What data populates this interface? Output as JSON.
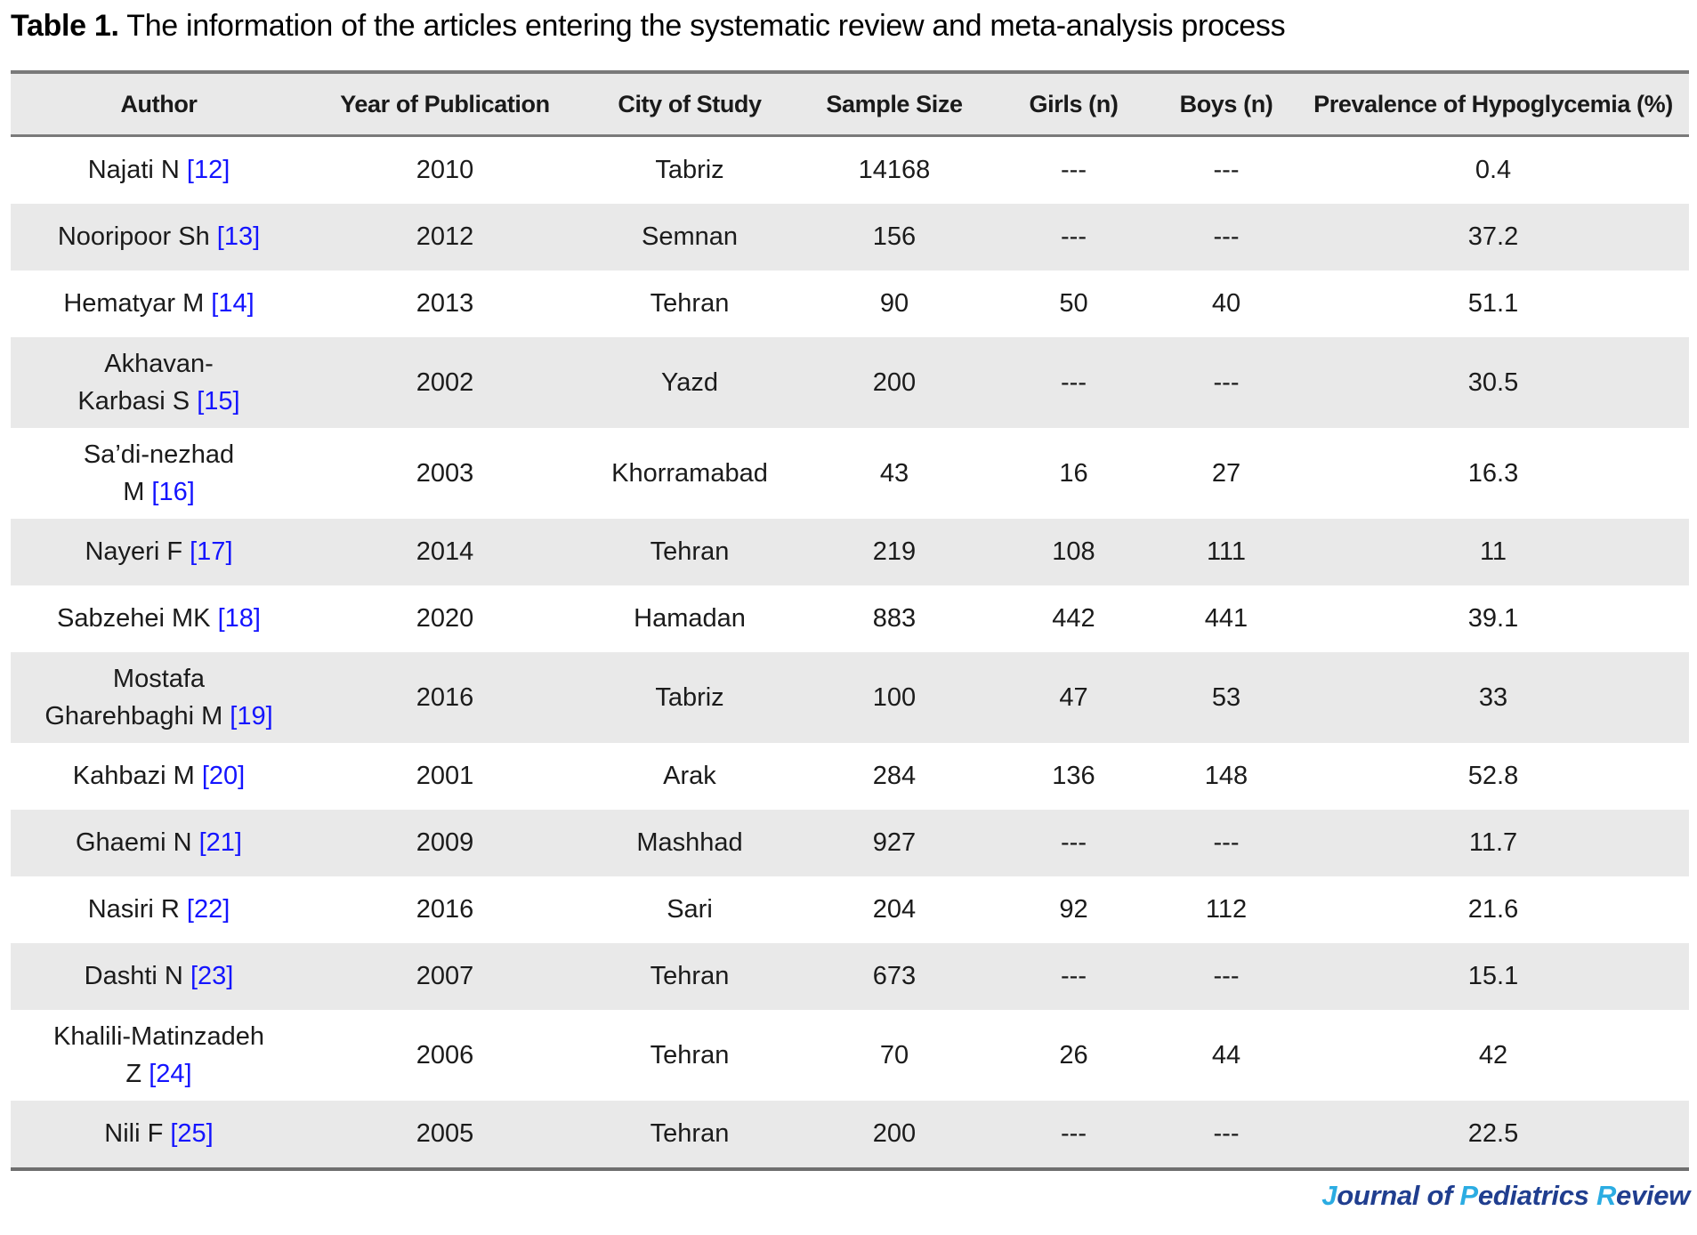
{
  "title": {
    "label": "Table 1.",
    "text": " The information of the articles entering the systematic review and meta-analysis process"
  },
  "table": {
    "columns": [
      "Author",
      "Year of Publication",
      "City of Study",
      "Sample Size",
      "Girls (n)",
      "Boys (n)",
      "Prevalence of Hypoglycemia (%)"
    ],
    "rows": [
      {
        "author_lines": [
          "Najati N"
        ],
        "ref": "[12]",
        "year": "2010",
        "city": "Tabriz",
        "sample_size": "14168",
        "girls": "---",
        "boys": "---",
        "prevalence": "0.4"
      },
      {
        "author_lines": [
          "Nooripoor Sh"
        ],
        "ref": "[13]",
        "year": "2012",
        "city": "Semnan",
        "sample_size": "156",
        "girls": "---",
        "boys": "---",
        "prevalence": "37.2"
      },
      {
        "author_lines": [
          "Hematyar M"
        ],
        "ref": "[14]",
        "year": "2013",
        "city": "Tehran",
        "sample_size": "90",
        "girls": "50",
        "boys": "40",
        "prevalence": "51.1"
      },
      {
        "author_lines": [
          "Akhavan-",
          "Karbasi S"
        ],
        "ref": "[15]",
        "year": "2002",
        "city": "Yazd",
        "sample_size": "200",
        "girls": "---",
        "boys": "---",
        "prevalence": "30.5"
      },
      {
        "author_lines": [
          "Sa’di-nezhad",
          "M"
        ],
        "ref": "[16]",
        "year": "2003",
        "city": "Khorramabad",
        "sample_size": "43",
        "girls": "16",
        "boys": "27",
        "prevalence": "16.3"
      },
      {
        "author_lines": [
          "Nayeri F"
        ],
        "ref": "[17]",
        "year": "2014",
        "city": "Tehran",
        "sample_size": "219",
        "girls": "108",
        "boys": "111",
        "prevalence": "11"
      },
      {
        "author_lines": [
          "Sabzehei MK"
        ],
        "ref": "[18]",
        "year": "2020",
        "city": "Hamadan",
        "sample_size": "883",
        "girls": "442",
        "boys": "441",
        "prevalence": "39.1"
      },
      {
        "author_lines": [
          "Mostafa",
          "Gharehbaghi M"
        ],
        "ref": "[19]",
        "year": "2016",
        "city": "Tabriz",
        "sample_size": "100",
        "girls": "47",
        "boys": "53",
        "prevalence": "33"
      },
      {
        "author_lines": [
          "Kahbazi M"
        ],
        "ref": "[20]",
        "year": "2001",
        "city": "Arak",
        "sample_size": "284",
        "girls": "136",
        "boys": "148",
        "prevalence": "52.8"
      },
      {
        "author_lines": [
          "Ghaemi N"
        ],
        "ref": "[21]",
        "year": "2009",
        "city": "Mashhad",
        "sample_size": "927",
        "girls": "---",
        "boys": "---",
        "prevalence": "11.7"
      },
      {
        "author_lines": [
          "Nasiri R"
        ],
        "ref": "[22]",
        "year": "2016",
        "city": "Sari",
        "sample_size": "204",
        "girls": "92",
        "boys": "112",
        "prevalence": "21.6"
      },
      {
        "author_lines": [
          "Dashti N"
        ],
        "ref": "[23]",
        "year": "2007",
        "city": "Tehran",
        "sample_size": "673",
        "girls": "---",
        "boys": "---",
        "prevalence": "15.1"
      },
      {
        "author_lines": [
          "Khalili-Matinzadeh",
          "Z"
        ],
        "ref": "[24]",
        "year": "2006",
        "city": "Tehran",
        "sample_size": "70",
        "girls": "26",
        "boys": "44",
        "prevalence": "42"
      },
      {
        "author_lines": [
          "Nili F"
        ],
        "ref": "[25]",
        "year": "2005",
        "city": "Tehran",
        "sample_size": "200",
        "girls": "---",
        "boys": "---",
        "prevalence": "22.5"
      }
    ]
  },
  "footer": {
    "part1_initial": "J",
    "part1_rest": "ournal",
    "sep1": " of ",
    "part2_initial": "P",
    "part2_rest": "ediatrics",
    "sep2": " ",
    "part3_initial": "R",
    "part3_rest": "eview"
  },
  "colors": {
    "reference_link": "#1414ff",
    "row_stripe": "#e9e9e9",
    "table_border": "#7a7a7a",
    "journal_dark_blue": "#203e8f",
    "journal_light_blue": "#2bace2"
  }
}
